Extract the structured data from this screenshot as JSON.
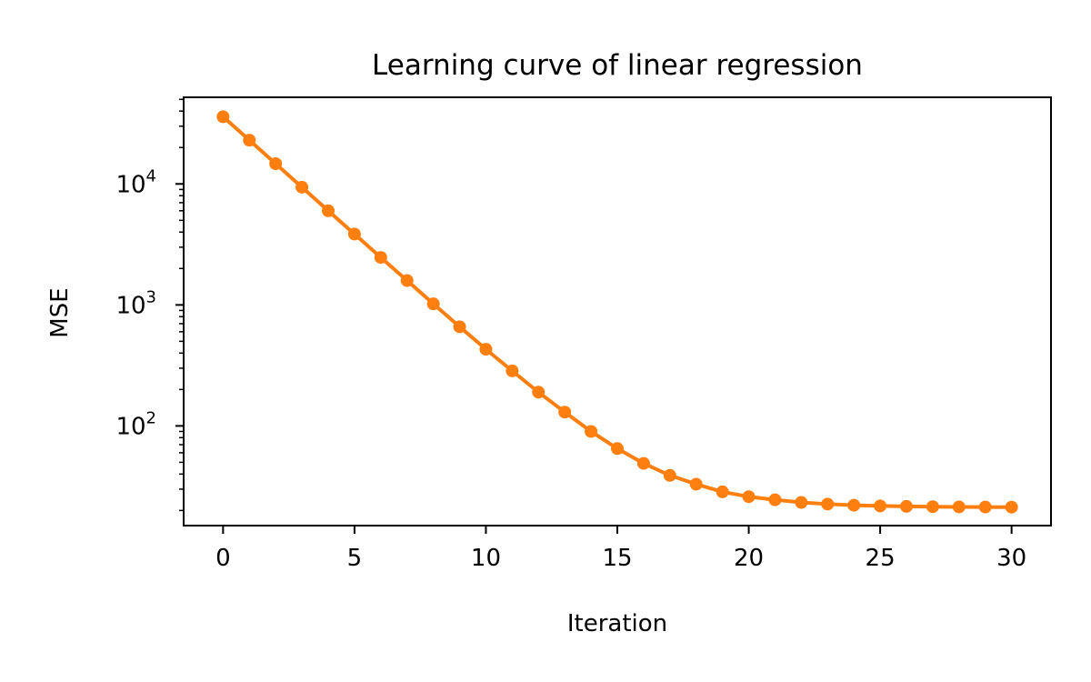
{
  "chart_data": {
    "type": "line",
    "title": "Learning curve of linear regression",
    "xlabel": "Iteration",
    "ylabel": "MSE",
    "y_scale": "log",
    "xlim": [
      -1.5,
      31.5
    ],
    "ylim": [
      15,
      52000
    ],
    "x_ticks": [
      0,
      5,
      10,
      15,
      20,
      25,
      30
    ],
    "x_tick_labels": [
      "0",
      "5",
      "10",
      "15",
      "20",
      "25",
      "30"
    ],
    "y_ticks": [
      100,
      1000,
      10000
    ],
    "y_tick_labels": [
      {
        "base": "10",
        "exp": "2"
      },
      {
        "base": "10",
        "exp": "3"
      },
      {
        "base": "10",
        "exp": "4"
      }
    ],
    "grid": false,
    "legend": "none",
    "series": [
      {
        "color": "#ff7f0e",
        "marker": "circle",
        "x": [
          0,
          1,
          2,
          3,
          4,
          5,
          6,
          7,
          8,
          9,
          10,
          11,
          12,
          13,
          14,
          15,
          16,
          17,
          18,
          19,
          20,
          21,
          22,
          23,
          24,
          25,
          26,
          27,
          28,
          29,
          30
        ],
        "y": [
          35900,
          23000,
          14700,
          9400,
          6000,
          3850,
          2470,
          1590,
          1020,
          660,
          430,
          285,
          190,
          130,
          90,
          65,
          49,
          39,
          33,
          28.5,
          26,
          24.5,
          23.3,
          22.6,
          22.1,
          21.8,
          21.6,
          21.5,
          21.4,
          21.35,
          21.3
        ]
      }
    ]
  }
}
